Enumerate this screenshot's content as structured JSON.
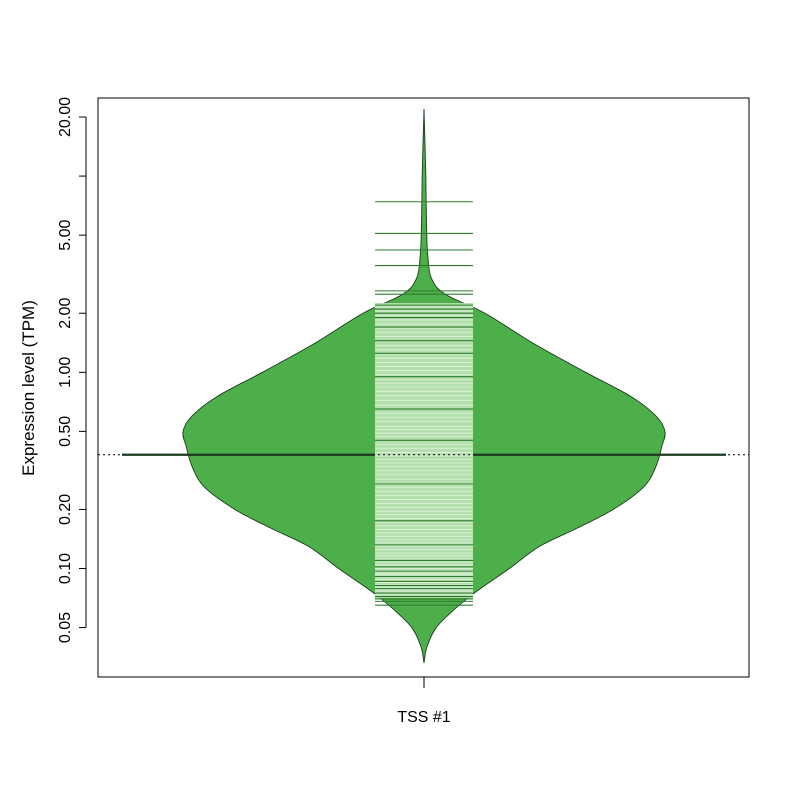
{
  "chart_data": {
    "type": "beanplot",
    "ylabel": "Expression level (TPM)",
    "y_scale": "log",
    "ylim": [
      0.028,
      25
    ],
    "y_ticks": [
      {
        "value": 0.05,
        "label": "0.05"
      },
      {
        "value": 0.1,
        "label": "0.10"
      },
      {
        "value": 0.2,
        "label": "0.20"
      },
      {
        "value": 0.5,
        "label": "0.50"
      },
      {
        "value": 1,
        "label": "1.00"
      },
      {
        "value": 2,
        "label": "2.00"
      },
      {
        "value": 5,
        "label": "5.00"
      },
      {
        "value": 10,
        "label": ""
      },
      {
        "value": 20,
        "label": "20.00"
      }
    ],
    "categories": [
      "TSS #1"
    ],
    "overall_average": 0.38,
    "bean_average": 0.38,
    "colors": {
      "bean_fill": "#4daf4a",
      "bean_outline": "#1a3d1a",
      "band_fill": "#b2dfab",
      "line_light": "#e8f5e5",
      "line_dark": "#2e7d2e",
      "average_line": "#1e3a1e"
    },
    "density_profile": [
      {
        "y": 0.033,
        "half_width": 0.0
      },
      {
        "y": 0.04,
        "half_width": 0.01
      },
      {
        "y": 0.05,
        "half_width": 0.04
      },
      {
        "y": 0.06,
        "half_width": 0.09
      },
      {
        "y": 0.07,
        "half_width": 0.14
      },
      {
        "y": 0.08,
        "half_width": 0.19
      },
      {
        "y": 0.1,
        "half_width": 0.28
      },
      {
        "y": 0.13,
        "half_width": 0.38
      },
      {
        "y": 0.16,
        "half_width": 0.5
      },
      {
        "y": 0.2,
        "half_width": 0.62
      },
      {
        "y": 0.26,
        "half_width": 0.72
      },
      {
        "y": 0.33,
        "half_width": 0.76
      },
      {
        "y": 0.42,
        "half_width": 0.78
      },
      {
        "y": 0.5,
        "half_width": 0.79
      },
      {
        "y": 0.6,
        "half_width": 0.76
      },
      {
        "y": 0.75,
        "half_width": 0.68
      },
      {
        "y": 1.0,
        "half_width": 0.53
      },
      {
        "y": 1.4,
        "half_width": 0.36
      },
      {
        "y": 2.0,
        "half_width": 0.2
      },
      {
        "y": 2.5,
        "half_width": 0.07
      },
      {
        "y": 3.0,
        "half_width": 0.025
      },
      {
        "y": 4.0,
        "half_width": 0.012
      },
      {
        "y": 6.0,
        "half_width": 0.008
      },
      {
        "y": 10.0,
        "half_width": 0.006
      },
      {
        "y": 15.0,
        "half_width": 0.003
      },
      {
        "y": 22.0,
        "half_width": 0.0
      }
    ],
    "observations_light": [
      0.074,
      0.076,
      0.078,
      0.08,
      0.083,
      0.085,
      0.088,
      0.09,
      0.093,
      0.095,
      0.098,
      0.1,
      0.104,
      0.108,
      0.112,
      0.116,
      0.12,
      0.125,
      0.13,
      0.135,
      0.14,
      0.146,
      0.152,
      0.158,
      0.165,
      0.172,
      0.18,
      0.188,
      0.196,
      0.205,
      0.215,
      0.225,
      0.236,
      0.248,
      0.26,
      0.272,
      0.285,
      0.3,
      0.315,
      0.33,
      0.345,
      0.36,
      0.375,
      0.39,
      0.41,
      0.43,
      0.45,
      0.47,
      0.49,
      0.51,
      0.53,
      0.56,
      0.59,
      0.62,
      0.65,
      0.68,
      0.72,
      0.76,
      0.8,
      0.84,
      0.88,
      0.92,
      0.97,
      1.02,
      1.07,
      1.12,
      1.18,
      1.24,
      1.3,
      1.37,
      1.44,
      1.52,
      1.6,
      1.68,
      1.76,
      1.85,
      1.95,
      2.05,
      2.15
    ],
    "observations_dark": [
      0.065,
      0.068,
      0.07,
      0.072,
      0.075,
      0.079,
      0.082,
      0.086,
      0.091,
      0.097,
      0.102,
      0.11,
      0.132,
      0.175,
      0.27,
      0.45,
      0.65,
      0.95,
      1.25,
      1.45,
      1.7,
      1.9,
      2.0,
      2.1,
      2.2,
      2.5,
      2.6,
      3.5,
      4.2,
      5.1,
      7.4
    ]
  }
}
